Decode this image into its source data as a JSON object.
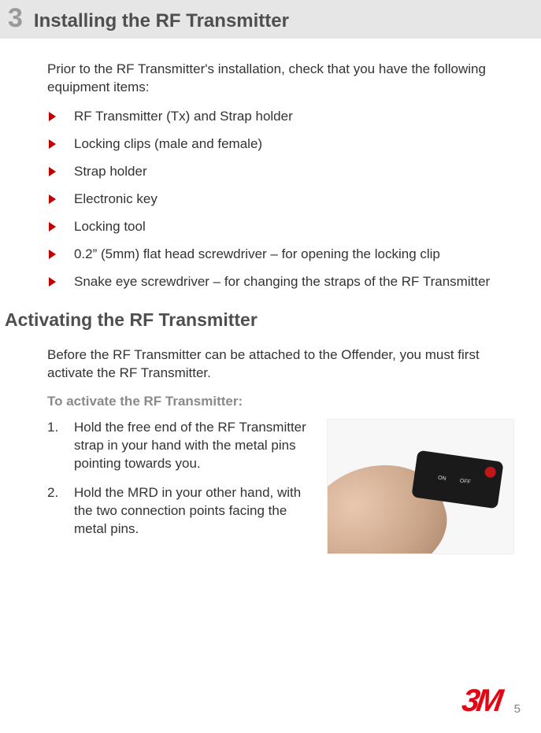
{
  "chapter": {
    "number": "3",
    "title": "Installing the RF Transmitter"
  },
  "intro": "Prior to the RF Transmitter's installation, check that you have the following equipment items:",
  "bullets": [
    "RF Transmitter (Tx) and Strap holder",
    "Locking clips (male and female)",
    "Strap holder",
    "Electronic key",
    "Locking tool",
    "0.2” (5mm) flat head screwdriver – for opening the locking clip",
    "Snake eye screwdriver – for changing the straps of the RF Transmitter"
  ],
  "section2": {
    "heading": "Activating the RF Transmitter",
    "para": "Before the RF Transmitter can be attached to the Offender, you must first activate the RF Transmitter.",
    "subheading": "To activate the RF Transmitter:",
    "steps": [
      "Hold the free end of the RF Transmitter strap in your hand with the metal pins pointing towards you.",
      "Hold the MRD in your other hand, with the two connection points facing the metal pins."
    ],
    "image": {
      "labels": {
        "on": "ON",
        "off": "OFF"
      }
    }
  },
  "footer": {
    "logo": "3M",
    "page": "5"
  },
  "colors": {
    "bullet_triangle": "#c00000",
    "chapter_num": "#9a9a9a",
    "heading": "#4f4f4f",
    "logo": "#e30613",
    "body_text": "#333333",
    "sub_bold": "#8a8a8a",
    "chapter_bg": "#e6e6e6"
  }
}
